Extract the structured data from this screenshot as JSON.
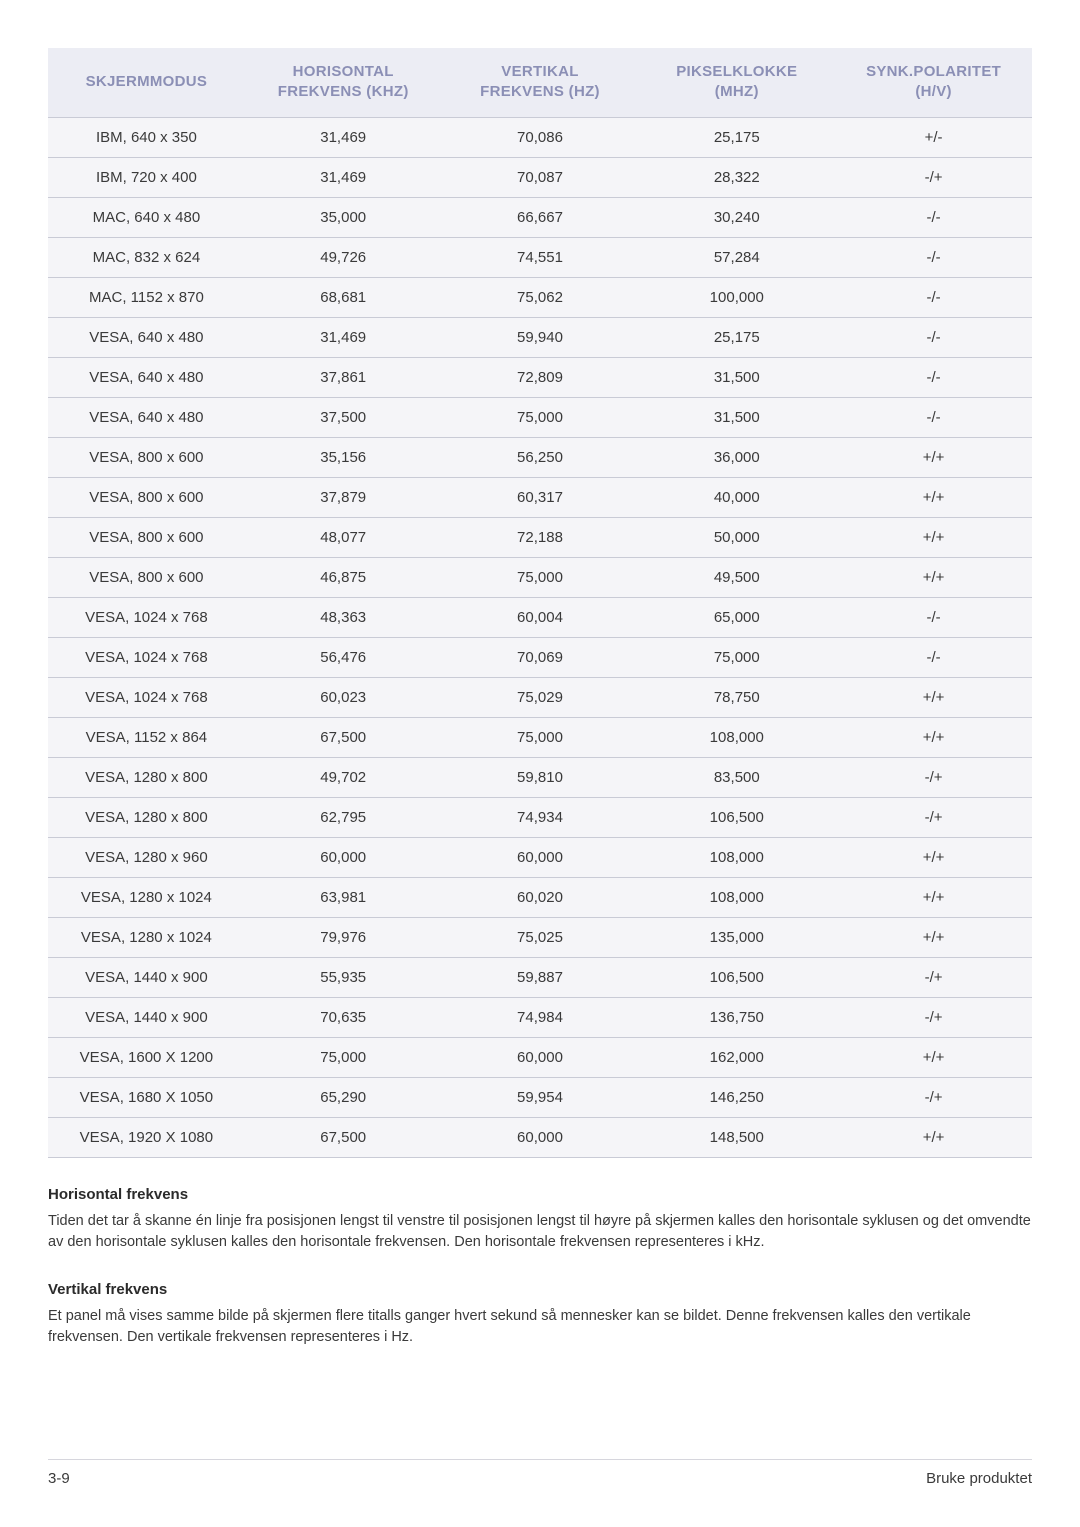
{
  "table": {
    "columns": [
      {
        "line1": "SKJERMMODUS",
        "line2": ""
      },
      {
        "line1": "HORISONTAL",
        "line2": "FREKVENS (KHZ)"
      },
      {
        "line1": "VERTIKAL",
        "line2": "FREKVENS (HZ)"
      },
      {
        "line1": "PIKSELKLOKKE",
        "line2": "(MHZ)"
      },
      {
        "line1": "SYNK.POLARITET",
        "line2": "(H/V)"
      }
    ],
    "rows": [
      [
        "IBM, 640 x 350",
        "31,469",
        "70,086",
        "25,175",
        "+/-"
      ],
      [
        "IBM, 720 x 400",
        "31,469",
        "70,087",
        "28,322",
        "-/+"
      ],
      [
        "MAC, 640 x 480",
        "35,000",
        "66,667",
        "30,240",
        "-/-"
      ],
      [
        "MAC, 832 x 624",
        "49,726",
        "74,551",
        "57,284",
        "-/-"
      ],
      [
        "MAC, 1152 x 870",
        "68,681",
        "75,062",
        "100,000",
        "-/-"
      ],
      [
        "VESA, 640 x 480",
        "31,469",
        "59,940",
        "25,175",
        "-/-"
      ],
      [
        "VESA, 640 x 480",
        "37,861",
        "72,809",
        "31,500",
        "-/-"
      ],
      [
        "VESA, 640 x 480",
        "37,500",
        "75,000",
        "31,500",
        "-/-"
      ],
      [
        "VESA, 800 x 600",
        "35,156",
        "56,250",
        "36,000",
        "+/+"
      ],
      [
        "VESA, 800 x 600",
        "37,879",
        "60,317",
        "40,000",
        "+/+"
      ],
      [
        "VESA, 800 x 600",
        "48,077",
        "72,188",
        "50,000",
        "+/+"
      ],
      [
        "VESA, 800 x 600",
        "46,875",
        "75,000",
        "49,500",
        "+/+"
      ],
      [
        "VESA, 1024 x 768",
        "48,363",
        "60,004",
        "65,000",
        "-/-"
      ],
      [
        "VESA, 1024 x 768",
        "56,476",
        "70,069",
        "75,000",
        "-/-"
      ],
      [
        "VESA, 1024 x 768",
        "60,023",
        "75,029",
        "78,750",
        "+/+"
      ],
      [
        "VESA, 1152 x 864",
        "67,500",
        "75,000",
        "108,000",
        "+/+"
      ],
      [
        "VESA, 1280 x 800",
        "49,702",
        "59,810",
        "83,500",
        "-/+"
      ],
      [
        "VESA, 1280 x 800",
        "62,795",
        "74,934",
        "106,500",
        "-/+"
      ],
      [
        "VESA, 1280 x 960",
        "60,000",
        "60,000",
        "108,000",
        "+/+"
      ],
      [
        "VESA, 1280 x 1024",
        "63,981",
        "60,020",
        "108,000",
        "+/+"
      ],
      [
        "VESA, 1280 x 1024",
        "79,976",
        "75,025",
        "135,000",
        "+/+"
      ],
      [
        "VESA, 1440 x 900",
        "55,935",
        "59,887",
        "106,500",
        "-/+"
      ],
      [
        "VESA, 1440 x 900",
        "70,635",
        "74,984",
        "136,750",
        "-/+"
      ],
      [
        "VESA, 1600 X 1200",
        "75,000",
        "60,000",
        "162,000",
        "+/+"
      ],
      [
        "VESA, 1680 X 1050",
        "65,290",
        "59,954",
        "146,250",
        "-/+"
      ],
      [
        "VESA, 1920 X 1080",
        "67,500",
        "60,000",
        "148,500",
        "+/+"
      ]
    ],
    "header_bg": "#ecedf4",
    "header_fg": "#8b8fb5",
    "row_bg": "#f5f5f8",
    "border_color": "#c9cbd6",
    "col_widths_pct": [
      20,
      20,
      20,
      20,
      20
    ]
  },
  "sections": {
    "h1_title": "Horisontal frekvens",
    "h1_body": "Tiden det tar å skanne én linje fra posisjonen lengst til venstre til posisjonen lengst til høyre på skjermen kalles den horisontale syklusen og det omvendte av den horisontale syklusen kalles den horisontale frekvensen. Den horisontale frekvensen representeres i kHz.",
    "v1_title": "Vertikal frekvens",
    "v1_body": "Et panel må vises samme bilde på skjermen flere titalls ganger hvert sekund så mennesker kan se bildet. Denne frekvensen kalles den vertikale frekvensen. Den vertikale frekvensen representeres i Hz."
  },
  "footer": {
    "left": "3-9",
    "right": "Bruke produktet"
  }
}
